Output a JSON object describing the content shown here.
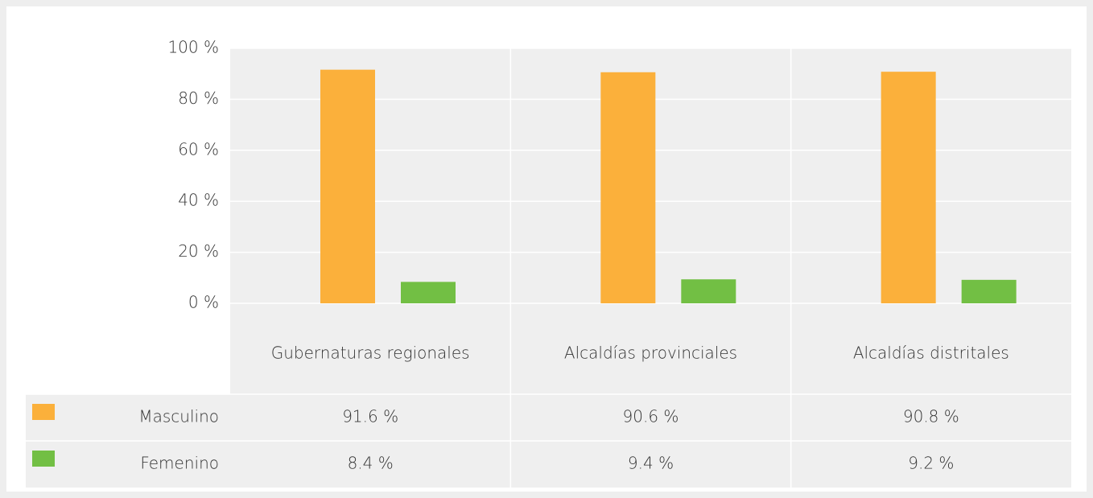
{
  "chart_data": {
    "type": "bar",
    "categories": [
      "Gubernaturas regionales",
      "Alcaldías provinciales",
      "Alcaldías distritales"
    ],
    "series": [
      {
        "name": "Masculino",
        "color": "#fbb03b",
        "values": [
          91.6,
          90.6,
          90.8
        ],
        "value_labels": [
          "91.6 %",
          "90.6 %",
          "90.8 %"
        ]
      },
      {
        "name": "Femenino",
        "color": "#72bf44",
        "values": [
          8.4,
          9.4,
          9.2
        ],
        "value_labels": [
          "8.4 %",
          "9.4 %",
          "9.2 %"
        ]
      }
    ],
    "ylim": [
      0,
      100
    ],
    "yticks": [
      {
        "value": 0,
        "label": "0 %"
      },
      {
        "value": 20,
        "label": "20 %"
      },
      {
        "value": 40,
        "label": "40 %"
      },
      {
        "value": 60,
        "label": "60 %"
      },
      {
        "value": 80,
        "label": "80 %"
      },
      {
        "value": 100,
        "label": "100 %"
      }
    ],
    "grid": true,
    "data_table": true
  }
}
